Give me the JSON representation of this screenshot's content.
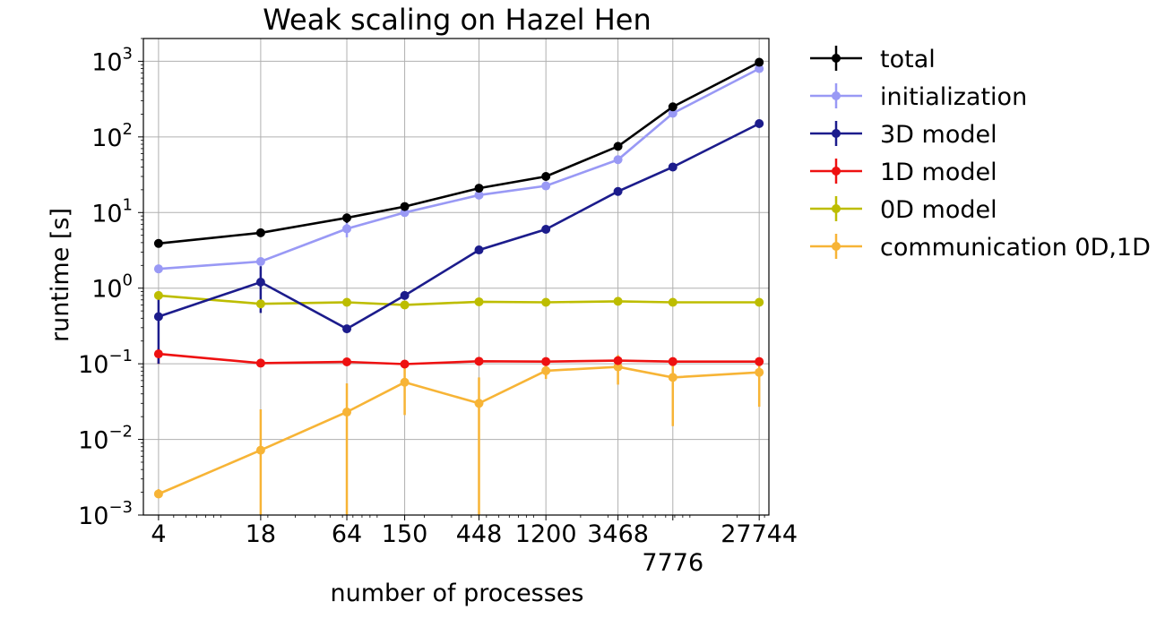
{
  "chart_data": {
    "type": "line",
    "title": "Weak scaling on Hazel Hen",
    "xlabel": "number of processes",
    "ylabel": "runtime [s]",
    "xscale": "log",
    "yscale": "log",
    "xlim": [
      3.2,
      32000
    ],
    "ylim": [
      0.001,
      2000
    ],
    "grid": true,
    "legend_position": "outside-right",
    "x": [
      4,
      18,
      64,
      150,
      448,
      1200,
      3468,
      7776,
      27744
    ],
    "x_tick_labels": [
      "4",
      "18",
      "64",
      "150",
      "448",
      "1200",
      "3468",
      "7776",
      "27744"
    ],
    "y_ticks": [
      {
        "base": "10",
        "exp": "−3"
      },
      {
        "base": "10",
        "exp": "−2"
      },
      {
        "base": "10",
        "exp": "−1"
      },
      {
        "base": "10",
        "exp": "0"
      },
      {
        "base": "10",
        "exp": "1"
      },
      {
        "base": "10",
        "exp": "2"
      },
      {
        "base": "10",
        "exp": "3"
      }
    ],
    "series": [
      {
        "name": "total",
        "color": "#000000",
        "values": [
          3.9,
          5.4,
          8.5,
          12,
          21,
          30,
          75,
          250,
          970
        ],
        "err_low": [
          null,
          null,
          7.3,
          null,
          null,
          null,
          null,
          null,
          null
        ],
        "err_high": [
          null,
          null,
          9.7,
          null,
          null,
          null,
          null,
          null,
          null
        ]
      },
      {
        "name": "initialization",
        "color": "#9999f5",
        "values": [
          1.8,
          2.25,
          6.1,
          10,
          17,
          22.5,
          50,
          205,
          800
        ],
        "err_low": [
          null,
          null,
          4.7,
          null,
          null,
          null,
          null,
          null,
          null
        ],
        "err_high": [
          null,
          null,
          7.5,
          null,
          null,
          null,
          null,
          null,
          null
        ]
      },
      {
        "name": "3D model",
        "color": "#1c1c8c",
        "values": [
          0.42,
          1.2,
          0.29,
          0.8,
          3.2,
          6,
          19,
          40,
          150
        ],
        "err_low": [
          0.1,
          0.47,
          null,
          null,
          null,
          null,
          null,
          null,
          null
        ],
        "err_high": [
          0.82,
          1.95,
          null,
          null,
          null,
          null,
          null,
          null,
          null
        ]
      },
      {
        "name": "1D model",
        "color": "#ee1111",
        "values": [
          0.135,
          0.102,
          0.106,
          0.099,
          0.108,
          0.107,
          0.11,
          0.107,
          0.107
        ],
        "err_low": [
          0.1,
          null,
          null,
          null,
          null,
          null,
          null,
          null,
          null
        ],
        "err_high": [
          0.16,
          null,
          null,
          null,
          null,
          null,
          null,
          null,
          null
        ]
      },
      {
        "name": "0D model",
        "color": "#bdbd00",
        "values": [
          0.8,
          0.62,
          0.65,
          0.6,
          0.66,
          0.65,
          0.67,
          0.65,
          0.65
        ],
        "err_low": [
          null,
          null,
          null,
          null,
          null,
          null,
          null,
          null,
          null
        ],
        "err_high": [
          null,
          null,
          null,
          null,
          null,
          null,
          null,
          null,
          null
        ]
      },
      {
        "name": "communication 0D,1D",
        "color": "#f7b436",
        "values": [
          0.0019,
          0.0072,
          0.023,
          0.057,
          0.03,
          0.081,
          0.091,
          0.066,
          0.077
        ],
        "err_low": [
          0.0017,
          0.001,
          0.001,
          0.021,
          0.001,
          0.063,
          0.053,
          0.015,
          0.027
        ],
        "err_high": [
          0.0022,
          0.025,
          0.055,
          0.1,
          0.066,
          0.105,
          0.13,
          0.12,
          0.12
        ]
      }
    ]
  }
}
